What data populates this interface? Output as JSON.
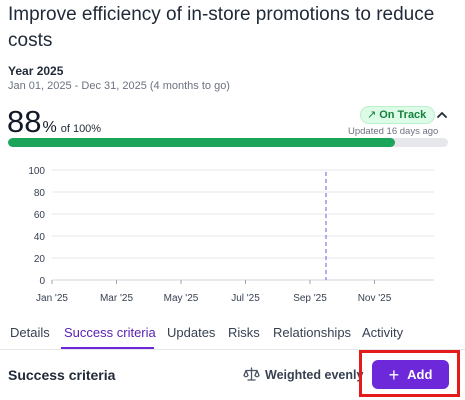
{
  "goal": {
    "title": "Improve efficiency of in-store promotions to reduce costs",
    "period_label": "Year 2025",
    "period_range": "Jan 01, 2025 - Dec 31, 2025 (4 months to go)",
    "progress_value": "88",
    "progress_unit": "%",
    "progress_of": "of 100%",
    "progress_fraction": 0.88,
    "status": "On Track",
    "status_icon": "trend-up-arrow-icon",
    "updated": "Updated 16 days ago",
    "colors": {
      "progress": "#1aa55a",
      "status_bg": "#dcfce7",
      "status_text": "#15803d",
      "accent": "#6d28d9",
      "highlight_frame": "#e31b1b"
    }
  },
  "chart_data": {
    "type": "line",
    "y_ticks": [
      "100",
      "80",
      "60",
      "40",
      "20",
      "0"
    ],
    "x_ticks": [
      "Jan '25",
      "Mar '25",
      "May '25",
      "Jul '25",
      "Sep '25",
      "Nov '25"
    ],
    "ylim": [
      0,
      100
    ],
    "grid": true,
    "today_marker": "Sep '25",
    "series": []
  },
  "tabs": [
    {
      "label": "Details",
      "active": false
    },
    {
      "label": "Success criteria",
      "active": true
    },
    {
      "label": "Updates",
      "active": false
    },
    {
      "label": "Risks",
      "active": false
    },
    {
      "label": "Relationships",
      "active": false
    },
    {
      "label": "Activity",
      "active": false
    }
  ],
  "success_criteria": {
    "title": "Success criteria",
    "weighting_icon": "scale-icon",
    "weighting": "Weighted evenly",
    "add_label": "Add",
    "add_icon": "plus-icon"
  }
}
